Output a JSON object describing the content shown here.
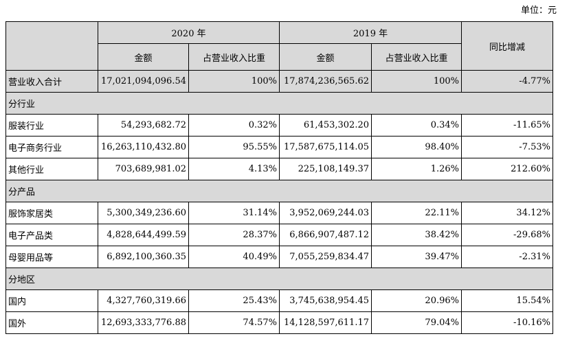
{
  "unit_label": "单位：元",
  "header": {
    "year_2020": "2020 年",
    "year_2019": "2019 年",
    "amount": "金额",
    "ratio": "占营业收入比重",
    "yoy": "同比增减"
  },
  "total": {
    "label": "营业收入合计",
    "a2020": "17,021,094,096.54",
    "r2020": "100%",
    "a2019": "17,874,236,565.62",
    "r2019": "100%",
    "yoy": "-4.77%"
  },
  "sections": [
    {
      "title": "分行业",
      "rows": [
        {
          "label": "服装行业",
          "a2020": "54,293,682.72",
          "r2020": "0.32%",
          "a2019": "61,453,302.20",
          "r2019": "0.34%",
          "yoy": "-11.65%"
        },
        {
          "label": "电子商务行业",
          "a2020": "16,263,110,432.80",
          "r2020": "95.55%",
          "a2019": "17,587,675,114.05",
          "r2019": "98.40%",
          "yoy": "-7.53%"
        },
        {
          "label": "其他行业",
          "a2020": "703,689,981.02",
          "r2020": "4.13%",
          "a2019": "225,108,149.37",
          "r2019": "1.26%",
          "yoy": "212.60%"
        }
      ]
    },
    {
      "title": "分产品",
      "rows": [
        {
          "label": "服饰家居类",
          "a2020": "5,300,349,236.60",
          "r2020": "31.14%",
          "a2019": "3,952,069,244.03",
          "r2019": "22.11%",
          "yoy": "34.12%"
        },
        {
          "label": "电子产品类",
          "a2020": "4,828,644,499.59",
          "r2020": "28.37%",
          "a2019": "6,866,907,487.12",
          "r2019": "38.42%",
          "yoy": "-29.68%"
        },
        {
          "label": "母婴用品等",
          "a2020": "6,892,100,360.35",
          "r2020": "40.49%",
          "a2019": "7,055,259,834.47",
          "r2019": "39.47%",
          "yoy": "-2.31%"
        }
      ]
    },
    {
      "title": "分地区",
      "rows": [
        {
          "label": "国内",
          "a2020": "4,327,760,319.66",
          "r2020": "25.43%",
          "a2019": "3,745,638,954.45",
          "r2019": "20.96%",
          "yoy": "15.54%"
        },
        {
          "label": "国外",
          "a2020": "12,693,333,776.88",
          "r2020": "74.57%",
          "a2019": "14,128,597,611.17",
          "r2019": "79.04%",
          "yoy": "-10.16%"
        }
      ]
    }
  ]
}
